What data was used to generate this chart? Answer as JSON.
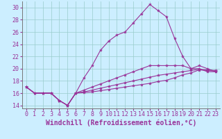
{
  "xlabel": "Windchill (Refroidissement éolien,°C)",
  "background_color": "#cceeff",
  "line_color": "#993399",
  "xlim": [
    -0.5,
    23.5
  ],
  "ylim": [
    13.5,
    31
  ],
  "yticks": [
    14,
    16,
    18,
    20,
    22,
    24,
    26,
    28,
    30
  ],
  "xticks": [
    0,
    1,
    2,
    3,
    4,
    5,
    6,
    7,
    8,
    9,
    10,
    11,
    12,
    13,
    14,
    15,
    16,
    17,
    18,
    19,
    20,
    21,
    22,
    23
  ],
  "x": [
    0,
    1,
    2,
    3,
    4,
    5,
    6,
    7,
    8,
    9,
    10,
    11,
    12,
    13,
    14,
    15,
    16,
    17,
    18,
    19,
    20,
    21,
    22,
    23
  ],
  "line1": [
    17.0,
    16.0,
    16.0,
    16.0,
    14.8,
    14.0,
    16.0,
    18.5,
    20.5,
    23.0,
    24.5,
    25.5,
    26.0,
    27.5,
    29.0,
    30.5,
    29.5,
    28.5,
    25.0,
    22.0,
    20.0,
    20.5,
    20.0,
    19.5
  ],
  "line2": [
    17.0,
    16.0,
    16.0,
    16.0,
    14.8,
    14.0,
    16.0,
    16.5,
    17.0,
    17.5,
    18.0,
    18.5,
    19.0,
    19.5,
    20.0,
    20.5,
    20.5,
    20.5,
    20.5,
    20.5,
    20.0,
    20.0,
    19.5,
    19.5
  ],
  "line3": [
    17.0,
    16.0,
    16.0,
    16.0,
    14.8,
    14.0,
    16.0,
    16.2,
    16.5,
    16.8,
    17.1,
    17.4,
    17.7,
    18.0,
    18.3,
    18.6,
    18.9,
    19.1,
    19.3,
    19.5,
    19.7,
    19.9,
    19.8,
    19.7
  ],
  "line4": [
    17.0,
    16.0,
    16.0,
    16.0,
    14.8,
    14.0,
    16.0,
    16.1,
    16.2,
    16.4,
    16.6,
    16.8,
    17.0,
    17.2,
    17.4,
    17.6,
    17.9,
    18.1,
    18.5,
    19.0,
    19.3,
    19.8,
    19.7,
    19.6
  ],
  "grid_color": "#99cccc",
  "xlabel_fontsize": 7,
  "tick_fontsize": 6
}
